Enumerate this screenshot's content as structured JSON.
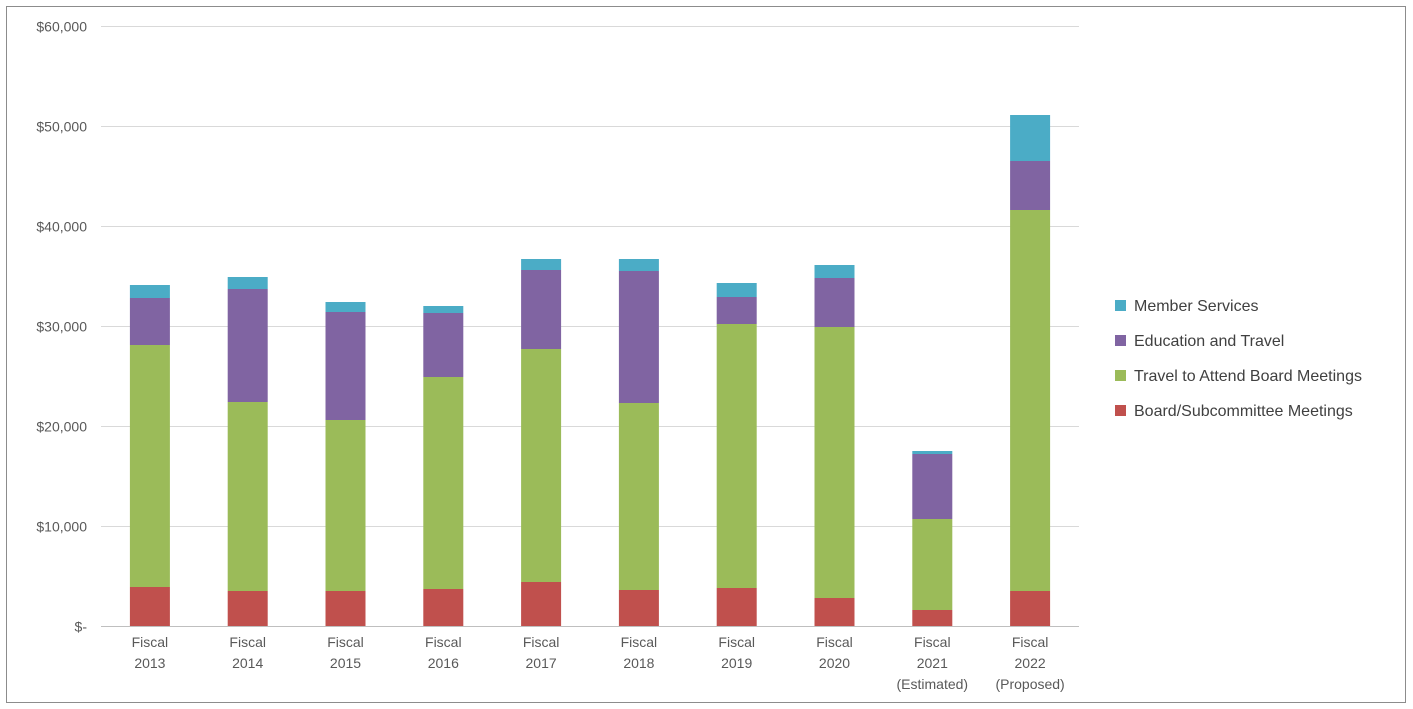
{
  "chart_data": {
    "type": "bar",
    "stacked": true,
    "categories": [
      [
        "Fiscal",
        "2013"
      ],
      [
        "Fiscal",
        "2014"
      ],
      [
        "Fiscal",
        "2015"
      ],
      [
        "Fiscal",
        "2016"
      ],
      [
        "Fiscal",
        "2017"
      ],
      [
        "Fiscal",
        "2018"
      ],
      [
        "Fiscal",
        "2019"
      ],
      [
        "Fiscal",
        "2020"
      ],
      [
        "Fiscal",
        "2021",
        "(Estimated)"
      ],
      [
        "Fiscal",
        "2022",
        "(Proposed)"
      ]
    ],
    "series": [
      {
        "name": "Board/Subcommittee Meetings",
        "color": "#c0504d",
        "values": [
          3900,
          3500,
          3500,
          3700,
          4400,
          3600,
          3800,
          2800,
          1600,
          3500
        ]
      },
      {
        "name": "Travel to Attend Board Meetings",
        "color": "#9bbb59",
        "values": [
          24200,
          18900,
          17100,
          21200,
          23300,
          18700,
          26400,
          27100,
          9100,
          38100
        ]
      },
      {
        "name": "Education and Travel",
        "color": "#8064a2",
        "values": [
          4700,
          11300,
          10800,
          6400,
          7900,
          13200,
          2700,
          4900,
          6500,
          4900
        ]
      },
      {
        "name": "Member Services",
        "color": "#4bacc6",
        "values": [
          1300,
          1200,
          1000,
          700,
          1100,
          1200,
          1400,
          1300,
          300,
          4600
        ]
      }
    ],
    "ylim": [
      0,
      60000
    ],
    "yticks": [
      0,
      10000,
      20000,
      30000,
      40000,
      50000,
      60000
    ],
    "ytick_labels": [
      "$-",
      "$10,000",
      "$20,000",
      "$30,000",
      "$40,000",
      "$50,000",
      "$60,000"
    ],
    "legend_order": [
      "Member Services",
      "Education and Travel",
      "Travel to Attend Board Meetings",
      "Board/Subcommittee Meetings"
    ],
    "legend_position": "right",
    "grid": true,
    "title": "",
    "xlabel": "",
    "ylabel": ""
  }
}
